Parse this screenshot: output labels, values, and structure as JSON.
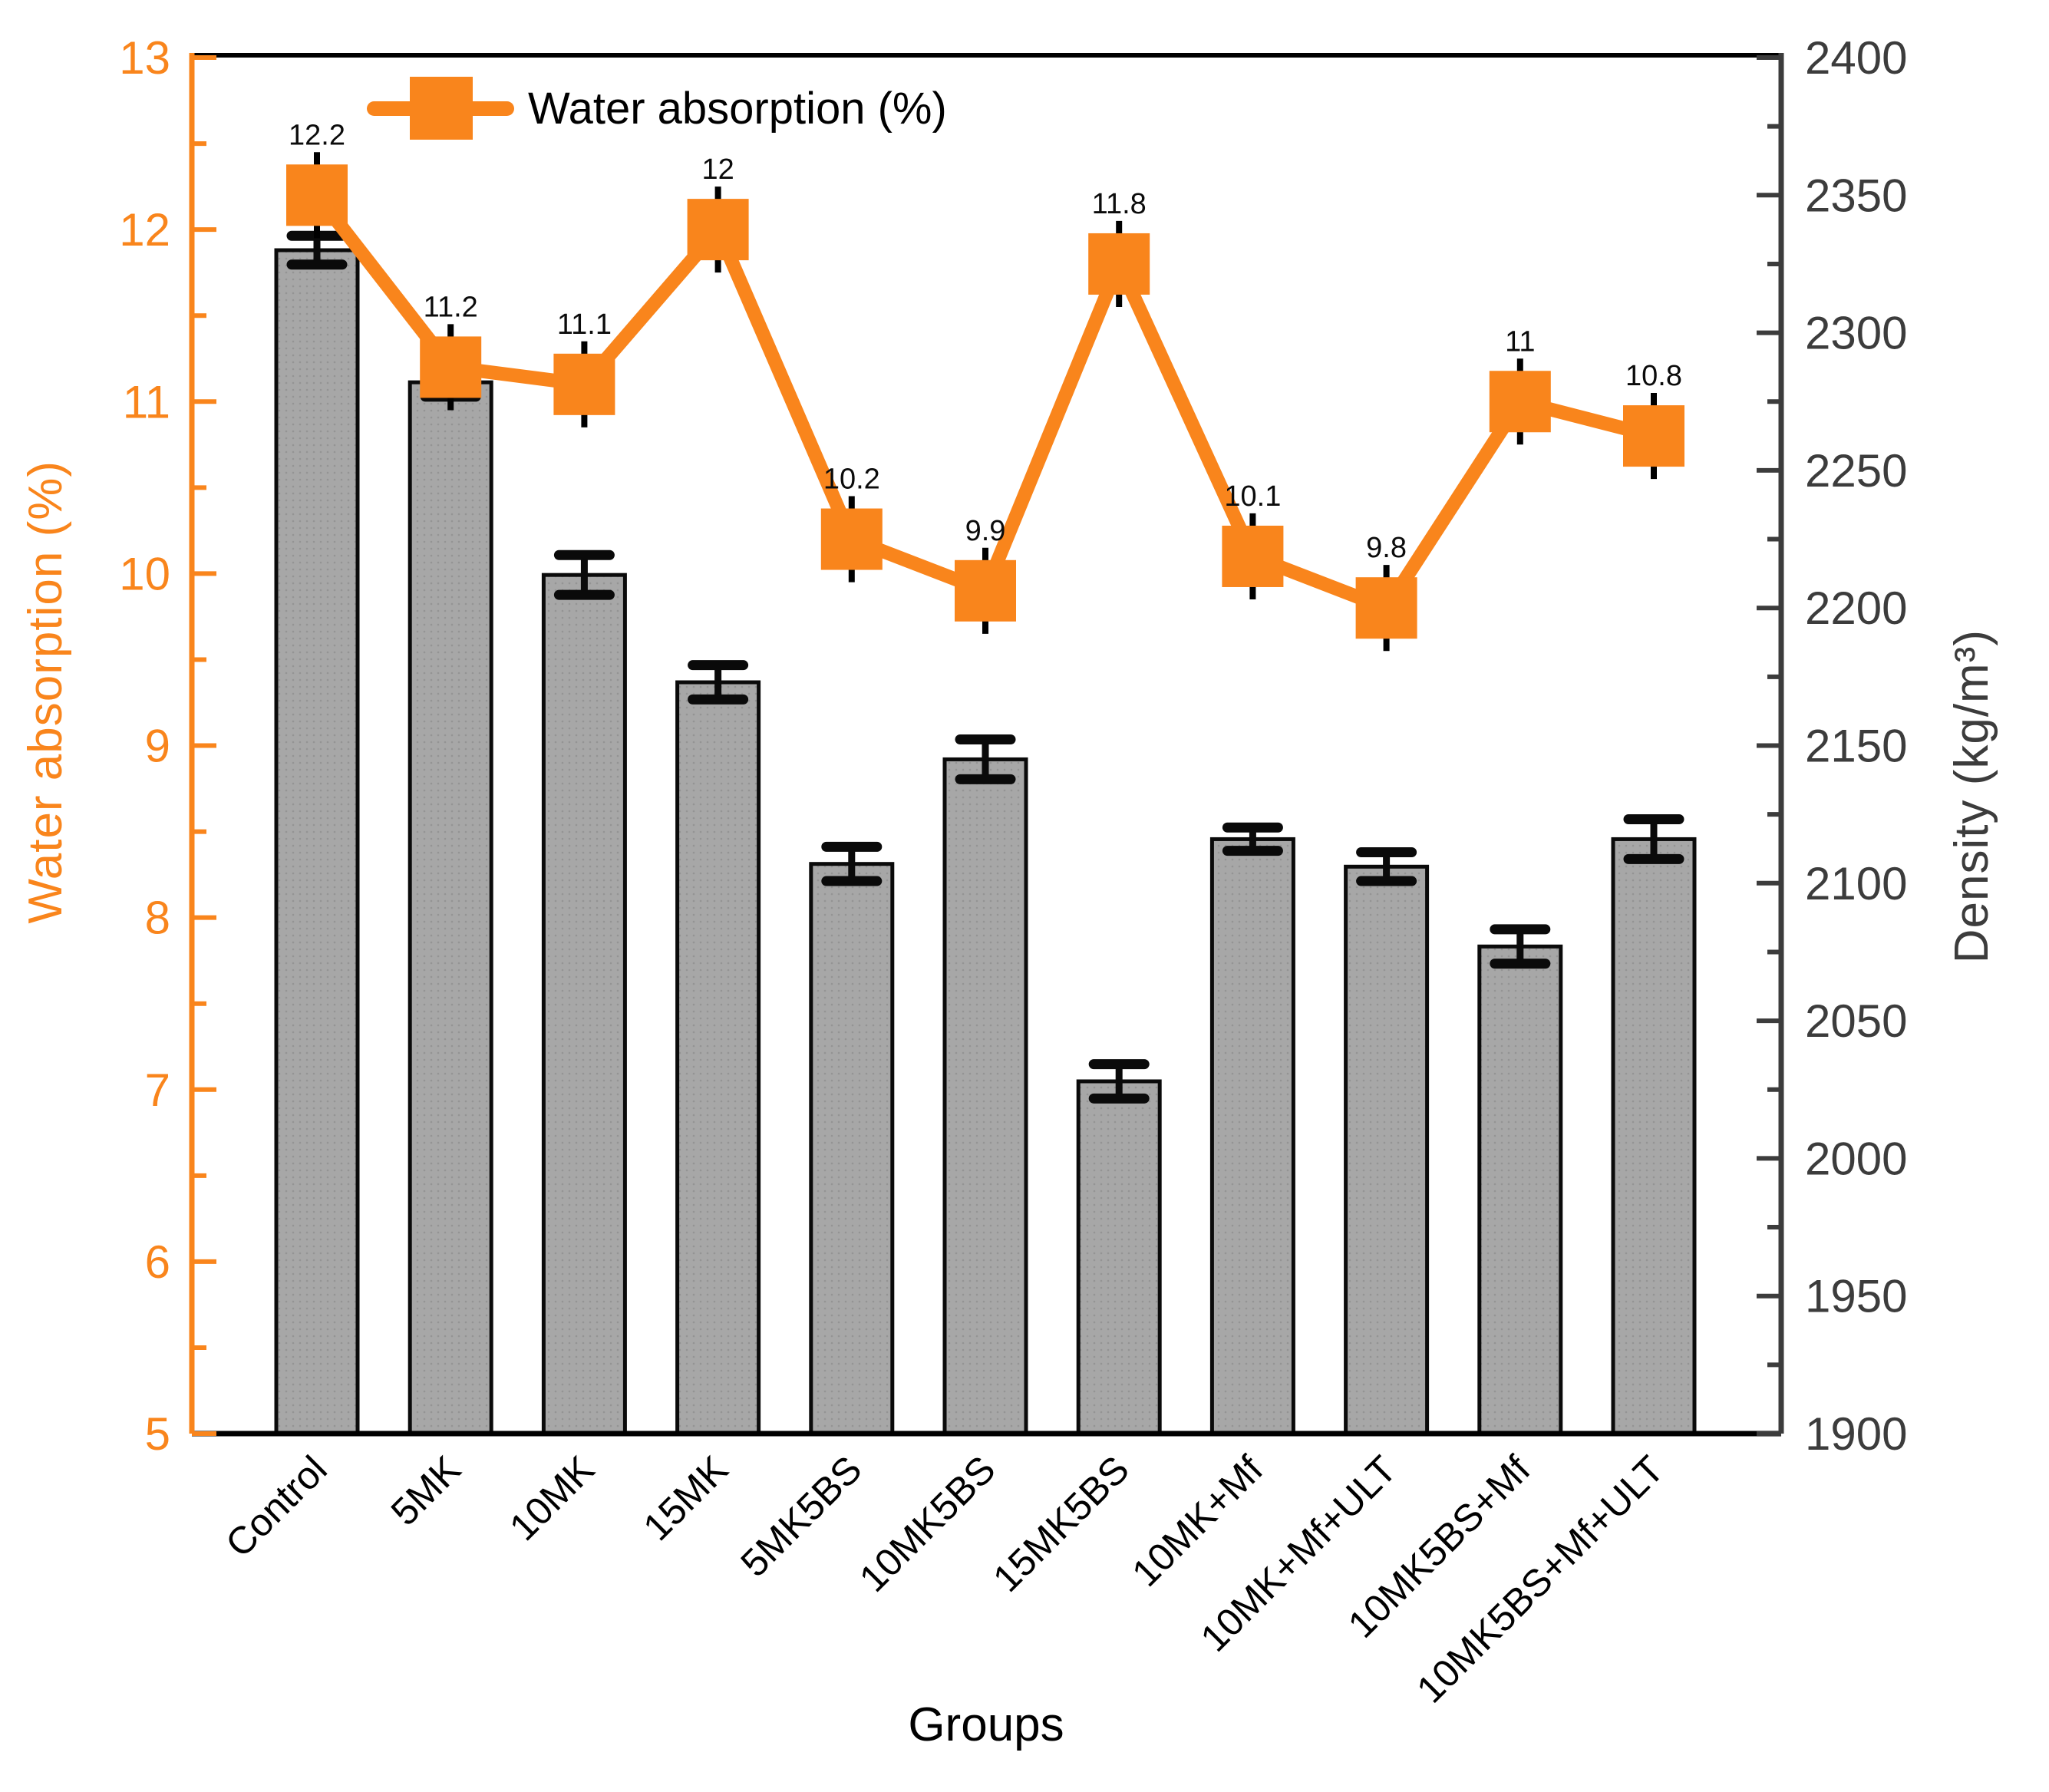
{
  "chart_data": {
    "type": "combo-bar-line",
    "categories": [
      "Control",
      "5MK",
      "10MK",
      "15MK",
      "5MK5BS",
      "10MK5BS",
      "15MK5BS",
      "10MK+Mf",
      "10MK+Mf+ULT",
      "10MK5BS+Mf",
      "10MK5BS+Mf+ULT"
    ],
    "series": [
      {
        "name": "Water absorption (%)",
        "type": "line",
        "axis": "left",
        "color": "#F9851C",
        "values": [
          12.2,
          11.2,
          11.1,
          12,
          10.2,
          9.9,
          11.8,
          10.1,
          9.8,
          11,
          10.8
        ],
        "point_labels": [
          "12.2",
          "11.2",
          "11.1",
          "12",
          "10.2",
          "9.9",
          "11.8",
          "10.1",
          "9.8",
          "11",
          "10.8"
        ],
        "error": 0.25
      },
      {
        "name": "Density",
        "type": "bar",
        "axis": "right",
        "color": "#A7A7A7",
        "values": [
          2330,
          2282,
          2212,
          2173,
          2107,
          2145,
          2028,
          2116,
          2106,
          2077,
          2116
        ],
        "errors": [
          3,
          3,
          5,
          4,
          4,
          5,
          4,
          2,
          3,
          4,
          5
        ]
      }
    ],
    "left_axis": {
      "label": "Water absorption (%)",
      "color": "#F9851C",
      "range": [
        5,
        13
      ],
      "major_ticks": [
        5,
        6,
        7,
        8,
        9,
        10,
        11,
        12,
        13
      ],
      "minor_step": 0.5
    },
    "right_axis": {
      "label": "Density (kg/m³)",
      "color": "#3C3C3C",
      "range": [
        1900,
        2400
      ],
      "major_ticks": [
        1900,
        1950,
        2000,
        2050,
        2100,
        2150,
        2200,
        2250,
        2300,
        2350,
        2400
      ],
      "minor_step": 25
    },
    "x_label": "Groups",
    "legend": {
      "entries": [
        "Water absorption (%)"
      ],
      "position": "top-left-inside"
    },
    "grid": false
  }
}
